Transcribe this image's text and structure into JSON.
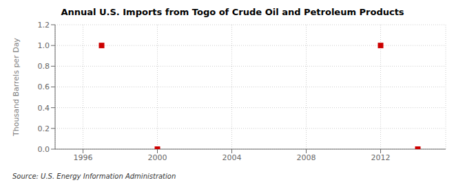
{
  "chart_data": {
    "type": "scatter",
    "title": "Annual U.S. Imports from Togo of Crude Oil and Petroleum Products",
    "y_label": "Thousand Barrels per Day",
    "source": "Source: U.S. Energy Information Administration",
    "x": [
      1997,
      2000,
      2012,
      2014
    ],
    "values": [
      1,
      0,
      1,
      0
    ],
    "color": "#cc0000",
    "marker": "square",
    "xlim": [
      1994.5,
      2015.5
    ],
    "ylim": [
      0,
      1.2
    ],
    "xticks": [
      1996,
      2000,
      2004,
      2008,
      2012
    ],
    "yticks": [
      {
        "value": 0,
        "label": "0.0"
      },
      0.2,
      0.4,
      0.6,
      0.8,
      {
        "value": 1,
        "label": "1.0"
      },
      1.2
    ],
    "grid": true
  }
}
